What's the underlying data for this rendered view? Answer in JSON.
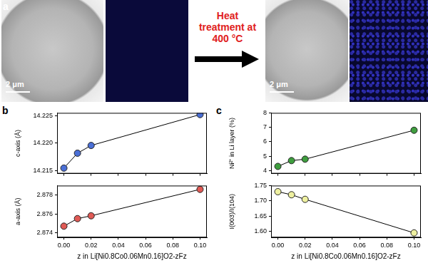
{
  "figure": {
    "panel_labels": [
      "a",
      "b",
      "c"
    ],
    "scale_bars": [
      "2 μm",
      "2 μm"
    ],
    "arrow_label": "Heat treatment at 400 °C"
  },
  "chart_data": [
    {
      "type": "line",
      "x": [
        0,
        0.01,
        0.02,
        0.1
      ],
      "values": [
        14.2155,
        14.2182,
        14.2196,
        14.2252
      ],
      "color": "#4a6fd6",
      "marker": "circle",
      "ylabel": "c-axis (Å)",
      "xlim": [
        -0.005,
        0.105
      ],
      "xticks": [
        {
          "value": 0,
          "label": "0.00"
        },
        {
          "value": 0.02,
          "label": "0.02"
        },
        {
          "value": 0.04,
          "label": "0.04"
        },
        {
          "value": 0.06,
          "label": "0.06"
        },
        {
          "value": 0.08,
          "label": "0.08"
        },
        {
          "value": 0.1,
          "label": "0.10"
        }
      ],
      "ylim": [
        14.2145,
        14.2255
      ],
      "yticks": [
        14.215,
        {
          "value": 14.22,
          "label": "14.220"
        },
        14.225
      ],
      "grid": false,
      "tick_labels": "y"
    },
    {
      "type": "line",
      "x": [
        0,
        0.01,
        0.02,
        0.1
      ],
      "values": [
        2.8747,
        2.8755,
        2.8758,
        2.8786
      ],
      "color": "#e05a55",
      "marker": "circle",
      "xlabel": "z in Li[Ni0.8Co0.06Mn0.16]O2-zFz",
      "ylabel": "a-axis (Å)",
      "xlim": [
        -0.005,
        0.105
      ],
      "xticks": [
        {
          "value": 0,
          "label": "0.00"
        },
        {
          "value": 0.02,
          "label": "0.02"
        },
        {
          "value": 0.04,
          "label": "0.04"
        },
        {
          "value": 0.06,
          "label": "0.06"
        },
        {
          "value": 0.08,
          "label": "0.08"
        },
        {
          "value": 0.1,
          "label": "0.10"
        }
      ],
      "ylim": [
        2.8735,
        2.879
      ],
      "yticks": [
        2.874,
        2.876,
        2.878
      ],
      "grid": false
    },
    {
      "type": "line",
      "x": [
        0,
        0.01,
        0.02,
        0.1
      ],
      "values": [
        4.3,
        4.7,
        4.8,
        6.8
      ],
      "color": "#3f9e3f",
      "marker": "circle",
      "ylabel": "Ni²⁺ in Li layer (%)",
      "xlim": [
        -0.005,
        0.105
      ],
      "xticks": [
        {
          "value": 0,
          "label": "0.00"
        },
        {
          "value": 0.02,
          "label": "0.02"
        },
        {
          "value": 0.04,
          "label": "0.04"
        },
        {
          "value": 0.06,
          "label": "0.06"
        },
        {
          "value": 0.08,
          "label": "0.08"
        },
        {
          "value": 0.1,
          "label": "0.10"
        }
      ],
      "ylim": [
        3.8,
        8
      ],
      "yticks": [
        4,
        5,
        6,
        7,
        8
      ],
      "grid": false,
      "tick_labels": "y"
    },
    {
      "type": "line",
      "x": [
        0,
        0.01,
        0.02,
        0.1
      ],
      "values": [
        1.73,
        1.72,
        1.705,
        1.595
      ],
      "color": "#eef0a0",
      "marker": "circle",
      "xlabel": "z in Li[Ni0.8Co0.06Mn0.16]O2-zFz",
      "ylabel": "I(003)/I(104)",
      "xlim": [
        -0.005,
        0.105
      ],
      "xticks": [
        {
          "value": 0,
          "label": "0.00"
        },
        {
          "value": 0.02,
          "label": "0.02"
        },
        {
          "value": 0.04,
          "label": "0.04"
        },
        {
          "value": 0.06,
          "label": "0.06"
        },
        {
          "value": 0.08,
          "label": "0.08"
        },
        {
          "value": 0.1,
          "label": "0.10"
        }
      ],
      "ylim": [
        1.58,
        1.75
      ],
      "yticks": [
        {
          "value": 1.6,
          "label": "1.60"
        },
        1.65,
        {
          "value": 1.7,
          "label": "1.70"
        },
        1.75
      ],
      "grid": false
    }
  ]
}
